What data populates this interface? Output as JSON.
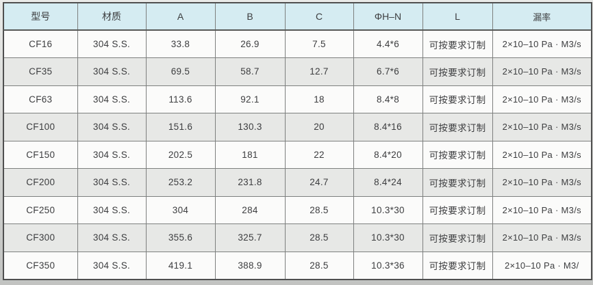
{
  "table": {
    "headers": [
      "型号",
      "材质",
      "A",
      "B",
      "C",
      "ΦH–N",
      "L",
      "漏率"
    ],
    "column_keys": [
      "model",
      "material",
      "dim-a",
      "dim-b",
      "dim-c",
      "phi-h-n",
      "length-l",
      "leak-rate"
    ],
    "rows": [
      [
        "CF16",
        "304 S.S.",
        "33.8",
        "26.9",
        "7.5",
        "4.4*6",
        "可按要求订制",
        "2×10–10 Pa · M3/s"
      ],
      [
        "CF35",
        "304 S.S.",
        "69.5",
        "58.7",
        "12.7",
        "6.7*6",
        "可按要求订制",
        "2×10–10 Pa · M3/s"
      ],
      [
        "CF63",
        "304 S.S.",
        "113.6",
        "92.1",
        "18",
        "8.4*8",
        "可按要求订制",
        "2×10–10 Pa · M3/s"
      ],
      [
        "CF100",
        "304 S.S.",
        "151.6",
        "130.3",
        "20",
        "8.4*16",
        "可按要求订制",
        "2×10–10 Pa · M3/s"
      ],
      [
        "CF150",
        "304 S.S.",
        "202.5",
        "181",
        "22",
        "8.4*20",
        "可按要求订制",
        "2×10–10 Pa · M3/s"
      ],
      [
        "CF200",
        "304 S.S.",
        "253.2",
        "231.8",
        "24.7",
        "8.4*24",
        "可按要求订制",
        "2×10–10 Pa · M3/s"
      ],
      [
        "CF250",
        "304 S.S.",
        "304",
        "284",
        "28.5",
        "10.3*30",
        "可按要求订制",
        "2×10–10 Pa · M3/s"
      ],
      [
        "CF300",
        "304 S.S.",
        "355.6",
        "325.7",
        "28.5",
        "10.3*30",
        "可按要求订制",
        "2×10–10 Pa · M3/s"
      ],
      [
        "CF350",
        "304 S.S.",
        "419.1",
        "388.9",
        "28.5",
        "10.3*36",
        "可按要求订制",
        "2×10–10 Pa · M3/"
      ]
    ]
  },
  "colors": {
    "header_bg": "#d5ecf2",
    "row_odd_bg": "#fbfbfa",
    "row_even_bg": "#e7e8e6",
    "border": "#4f4f4f",
    "text": "#3c3d3f"
  }
}
